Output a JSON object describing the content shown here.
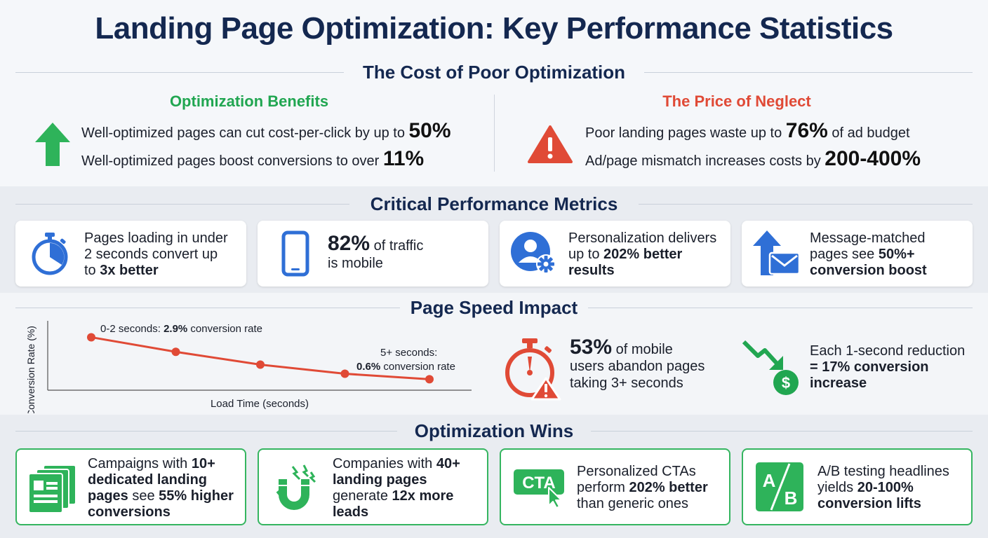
{
  "title": "Landing Page Optimization: Key Performance Statistics",
  "cost_section": {
    "title": "The Cost of Poor Optimization",
    "benefits": {
      "heading": "Optimization Benefits",
      "items": [
        {
          "text": "Well-optimized pages can cut cost-per-click by up to ",
          "value": "50%"
        },
        {
          "text": "Well-optimized pages boost conversions to over ",
          "value": "11%"
        }
      ]
    },
    "neglect": {
      "heading": "The Price of Neglect",
      "items": [
        {
          "pre": "Poor landing pages waste up to ",
          "value": "76%",
          "post": " of ad budget"
        },
        {
          "pre": "Ad/page mismatch increases costs by ",
          "value": "200-400%",
          "post": ""
        }
      ]
    }
  },
  "metrics_section": {
    "title": "Critical Performance Metrics",
    "cards": [
      {
        "icon": "stopwatch-icon",
        "l1": "Pages loading in under",
        "l2": "2 seconds convert up",
        "l3pre": "to ",
        "l3b": "3x better"
      },
      {
        "icon": "smartphone-icon",
        "big": "82%",
        "rest": " of traffic",
        "l2": "is mobile"
      },
      {
        "icon": "user-settings-icon",
        "l1": "Personalization delivers",
        "l2pre": "up to ",
        "l2b": "202% better",
        "l3b": "results"
      },
      {
        "icon": "arrow-mail-icon",
        "l1": "Message-matched",
        "l2pre": "pages see ",
        "l2b": "50%+",
        "l3b": "conversion boost"
      }
    ]
  },
  "speed_section": {
    "title": "Page Speed Impact",
    "abandon": {
      "big": "53%",
      "l1rest": " of mobile",
      "l2": "users abandon pages",
      "l3": "taking 3+ seconds"
    },
    "reduction": {
      "l1": "Each 1-second reduction",
      "l2": "= 17% conversion",
      "l3": "increase"
    }
  },
  "chart_data": {
    "type": "line",
    "xlabel": "Load Time (seconds)",
    "ylabel": "Conversion Rate (%)",
    "series": [
      {
        "values": [
          2.9,
          2.1,
          1.4,
          0.9,
          0.6
        ]
      }
    ],
    "ylim": [
      0,
      3.8
    ],
    "annotations": [
      {
        "pre": "0-2 seconds: ",
        "bold": "2.9%",
        "post": " conversion rate"
      },
      {
        "line1": "5+ seconds:",
        "bold": "0.6%",
        "post": " conversion rate"
      }
    ],
    "color": "#e04a36"
  },
  "wins_section": {
    "title": "Optimization Wins",
    "cards": [
      {
        "icon": "landing-pages-icon",
        "l1pre": "Campaigns with ",
        "l1b": "10+",
        "l2b": "dedicated landing",
        "l3b": "pages",
        "l3post": " see ",
        "l3b2": "55% higher",
        "l4b": "conversions"
      },
      {
        "icon": "magnet-icon",
        "l1pre": "Companies with ",
        "l1b": "40+",
        "l2b": "landing pages",
        "l3pre": "generate ",
        "l3b": "12x more",
        "l4b": "leads"
      },
      {
        "icon": "cta-icon",
        "cta": "CTA",
        "l1": "Personalized CTAs",
        "l2pre": "perform ",
        "l2b": "202% better",
        "l3": "than generic ones"
      },
      {
        "icon": "ab-test-icon",
        "a": "A",
        "b": "B",
        "l1": "A/B testing headlines",
        "l2pre": "yields ",
        "l2b": "20-100%",
        "l3b": "conversion lifts"
      }
    ]
  },
  "colors": {
    "navy": "#142850",
    "green": "#21a651",
    "red": "#e04a36",
    "blue": "#2f6fd6"
  }
}
